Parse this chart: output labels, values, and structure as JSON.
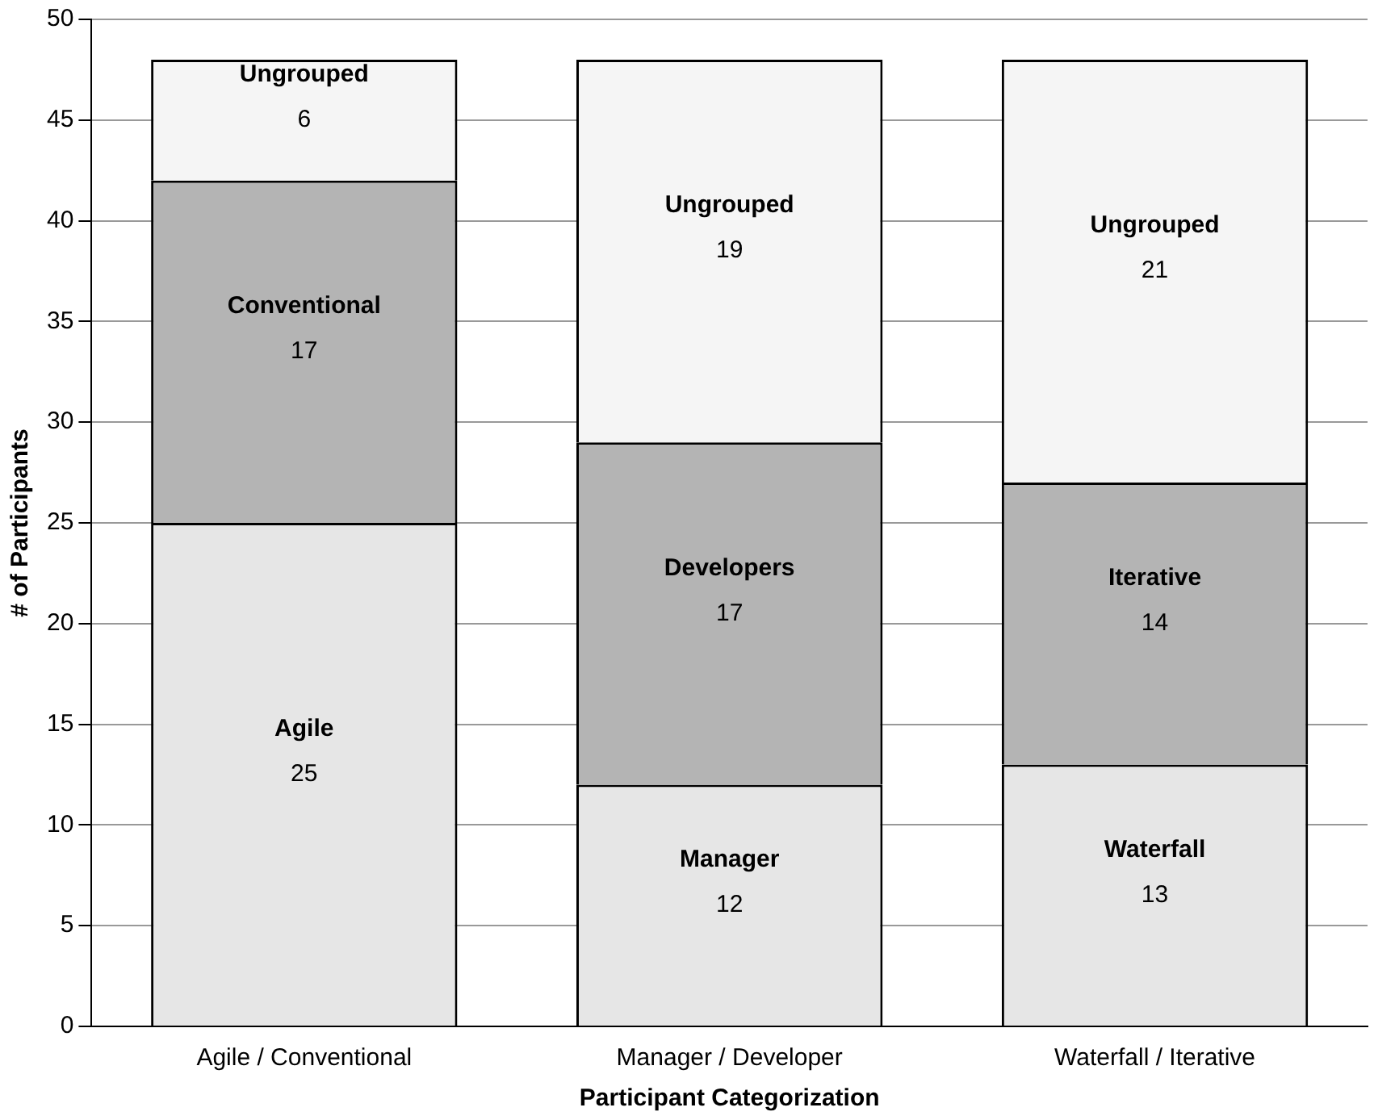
{
  "chart_data": {
    "type": "bar",
    "stacked": true,
    "xlabel": "Participant Categorization",
    "ylabel": "# of Participants",
    "categories": [
      "Agile / Conventional",
      "Manager / Developer",
      "Waterfall / Iterative"
    ],
    "series": [
      {
        "color": "#e6e6e6",
        "values": [
          25,
          12,
          13
        ]
      },
      {
        "color": "#b4b4b4",
        "values": [
          17,
          17,
          14
        ]
      },
      {
        "color": "#f5f5f5",
        "values": [
          6,
          19,
          21
        ]
      }
    ],
    "ylim": [
      0,
      50
    ],
    "yticks": [
      0,
      5,
      10,
      15,
      20,
      25,
      30,
      35,
      40,
      45,
      50
    ],
    "grid": "y",
    "legend": false,
    "data_labels": true,
    "annotations": [
      "Agile",
      "Conventional",
      "Ungrouped",
      "Manager",
      "Developers",
      "Ungrouped",
      "Waterfall",
      "Iterative",
      "Ungrouped"
    ]
  }
}
